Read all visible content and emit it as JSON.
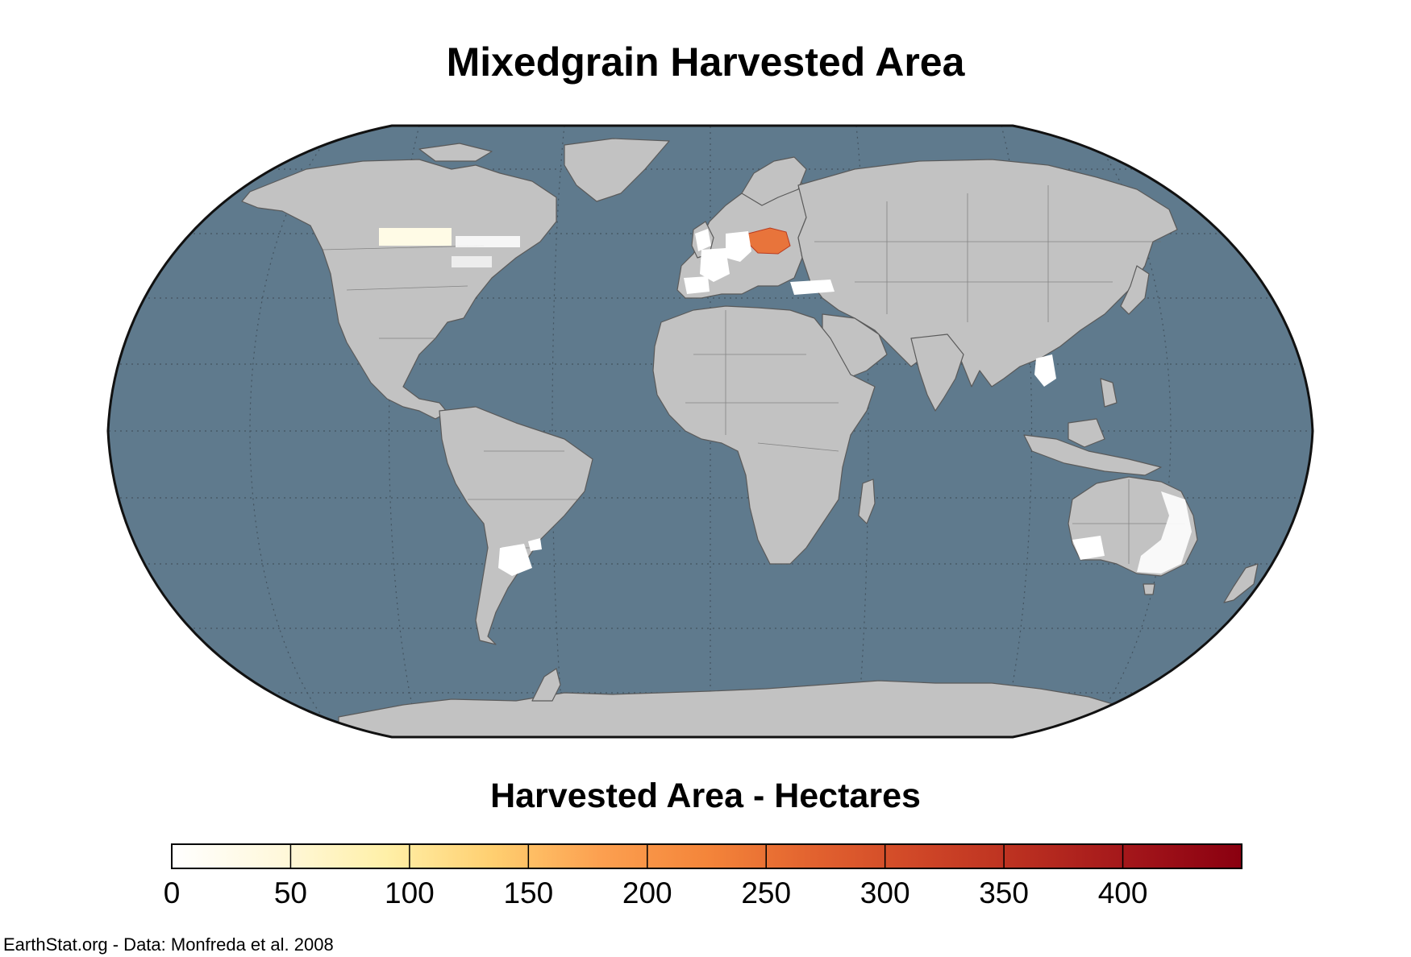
{
  "map": {
    "title": "Mixedgrain Harvested Area",
    "projection": "robinson",
    "ocean_color": "#5f7a8d",
    "land_color": "#c2c2c2",
    "no_data_color": "#c2c2c2",
    "regions_with_data": [
      {
        "name": "Poland",
        "level": "high",
        "color": "#e8743b"
      },
      {
        "name": "Germany",
        "level": "low",
        "color": "#ffffff"
      },
      {
        "name": "France",
        "level": "low",
        "color": "#ffffff"
      },
      {
        "name": "United Kingdom",
        "level": "low",
        "color": "#ffffff"
      },
      {
        "name": "Spain",
        "level": "low",
        "color": "#ffffff"
      },
      {
        "name": "Turkey",
        "level": "low",
        "color": "#ffffff"
      },
      {
        "name": "Canadian Prairies",
        "level": "low",
        "color": "#fffbe6"
      },
      {
        "name": "Argentina",
        "level": "low",
        "color": "#ffffff"
      },
      {
        "name": "Australia",
        "level": "low",
        "color": "#ffffff"
      },
      {
        "name": "Thailand",
        "level": "low",
        "color": "#ffffff"
      }
    ]
  },
  "legend": {
    "title": "Harvested Area - Hectares",
    "min": 0,
    "max": 450,
    "ticks": [
      "0",
      "50",
      "100",
      "150",
      "200",
      "250",
      "300",
      "350",
      "400"
    ],
    "tick_values": [
      0,
      50,
      100,
      150,
      200,
      250,
      300,
      350,
      400
    ],
    "colors": [
      "#ffffff",
      "#fff8dc",
      "#fff0a8",
      "#ffcf70",
      "#fca050",
      "#f4853a",
      "#e2622f",
      "#cf4627",
      "#b92e20",
      "#a2151a",
      "#8a0010"
    ]
  },
  "credit": "EarthStat.org - Data: Monfreda et al. 2008"
}
